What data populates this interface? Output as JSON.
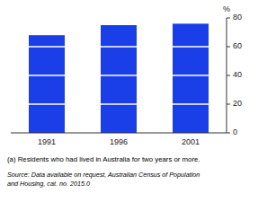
{
  "chart_data": {
    "type": "bar",
    "categories": [
      "1991",
      "1996",
      "2001"
    ],
    "values": [
      68,
      75,
      76
    ],
    "color": "#1a3ee8",
    "ylabel": "%",
    "ylim": [
      0,
      80
    ],
    "yticks": [
      0,
      20,
      40,
      60,
      80
    ],
    "grid": false,
    "annotations": [
      "(a) Residents who had lived in Australia for two years or more.",
      "Source: Data available on request, Australian Census of Population",
      "and Housing, cat. no. 2015.0"
    ]
  }
}
